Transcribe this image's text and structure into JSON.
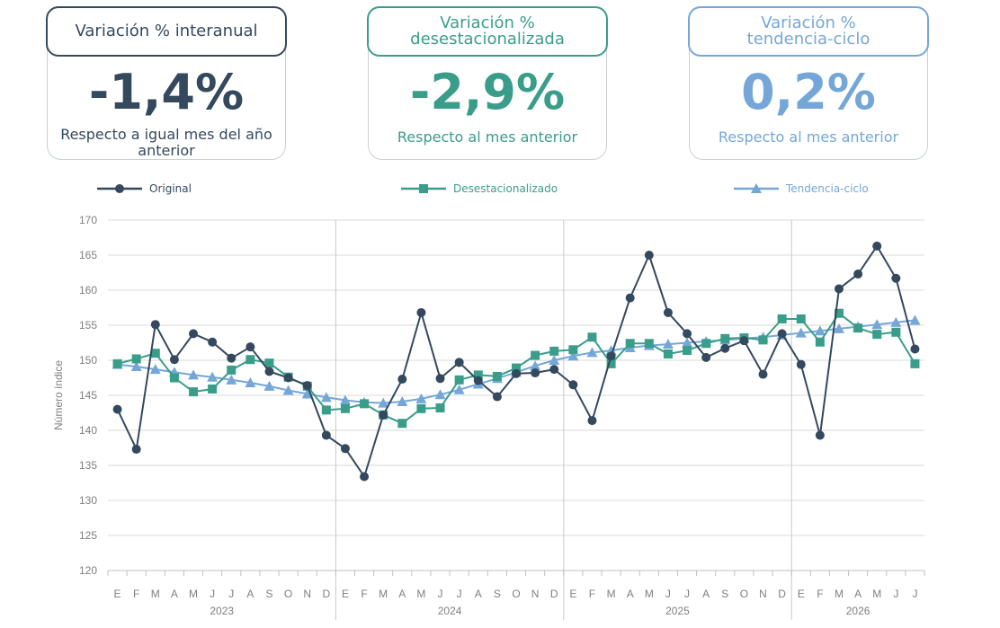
{
  "cards": [
    {
      "title": "Variación % interanual",
      "value": "-1,4%",
      "caption": "Respecto a igual mes del año anterior",
      "color": "#34495e"
    },
    {
      "title": "Variación % desestacionalizada",
      "value": "-2,9%",
      "caption": "Respecto al mes anterior",
      "color": "#3a9d8a"
    },
    {
      "title": "Variación % tendencia-ciclo",
      "value": "0,2%",
      "caption": "Respecto al mes anterior",
      "color": "#74a7d8"
    }
  ],
  "legend": [
    {
      "label": "Original",
      "color": "#34495e",
      "marker": "circle"
    },
    {
      "label": "Desestacionalizado",
      "color": "#3a9d8a",
      "marker": "square"
    },
    {
      "label": "Tendencia-ciclo",
      "color": "#74a7d8",
      "marker": "triangle"
    }
  ],
  "chart_data": {
    "type": "line",
    "ylabel": "Número índice",
    "ylim": [
      120,
      170
    ],
    "yticks": [
      120,
      125,
      130,
      135,
      140,
      145,
      150,
      155,
      160,
      165,
      170
    ],
    "month_labels": [
      "E",
      "F",
      "M",
      "A",
      "M",
      "J",
      "J",
      "A",
      "S",
      "O",
      "N",
      "D",
      "E",
      "F",
      "M",
      "A",
      "M",
      "J",
      "J",
      "A",
      "S",
      "O",
      "N",
      "D",
      "E",
      "F",
      "M",
      "A",
      "M",
      "J",
      "J",
      "A",
      "S",
      "O",
      "N",
      "D",
      "E",
      "F",
      "M",
      "A",
      "M",
      "J",
      "J"
    ],
    "years": [
      {
        "label": "2023",
        "months": 12
      },
      {
        "label": "2024",
        "months": 12
      },
      {
        "label": "2025",
        "months": 12
      },
      {
        "label": "2026",
        "months": 7
      }
    ],
    "grid": true,
    "series": [
      {
        "name": "Original",
        "color": "#34495e",
        "marker": "circle",
        "values": [
          143.0,
          137.3,
          155.1,
          150.1,
          153.8,
          152.6,
          150.3,
          151.9,
          148.4,
          147.5,
          146.4,
          139.3,
          137.4,
          133.4,
          142.2,
          147.3,
          156.8,
          147.4,
          149.7,
          147.1,
          144.8,
          148.1,
          148.2,
          148.7,
          146.5,
          141.4,
          150.6,
          158.9,
          165.0,
          156.8,
          153.8,
          150.4,
          151.7,
          152.8,
          148.0,
          153.8,
          149.4,
          139.3,
          160.2,
          162.3,
          166.3,
          161.7,
          151.6
        ]
      },
      {
        "name": "Desestacionalizado",
        "color": "#3a9d8a",
        "marker": "square",
        "values": [
          149.5,
          150.2,
          151.0,
          147.5,
          145.5,
          145.9,
          148.6,
          150.1,
          149.6,
          147.6,
          146.3,
          142.9,
          143.1,
          143.8,
          142.2,
          141.0,
          143.1,
          143.2,
          147.2,
          147.9,
          147.7,
          148.9,
          150.7,
          151.3,
          151.5,
          153.3,
          149.5,
          152.4,
          152.4,
          150.9,
          151.4,
          152.4,
          153.1,
          153.2,
          152.9,
          155.9,
          155.9,
          152.6,
          156.7,
          154.6,
          153.7,
          154.0,
          149.5
        ]
      },
      {
        "name": "Tendencia-ciclo",
        "color": "#74a7d8",
        "marker": "triangle",
        "values": [
          149.4,
          149.1,
          148.7,
          148.3,
          147.9,
          147.6,
          147.2,
          146.8,
          146.3,
          145.7,
          145.2,
          144.7,
          144.3,
          144.0,
          143.9,
          144.1,
          144.5,
          145.1,
          145.8,
          146.6,
          147.4,
          148.3,
          149.2,
          150.0,
          150.6,
          151.1,
          151.4,
          151.8,
          152.1,
          152.3,
          152.5,
          152.7,
          152.9,
          153.1,
          153.3,
          153.6,
          153.9,
          154.2,
          154.5,
          154.8,
          155.1,
          155.4,
          155.7
        ]
      }
    ]
  }
}
